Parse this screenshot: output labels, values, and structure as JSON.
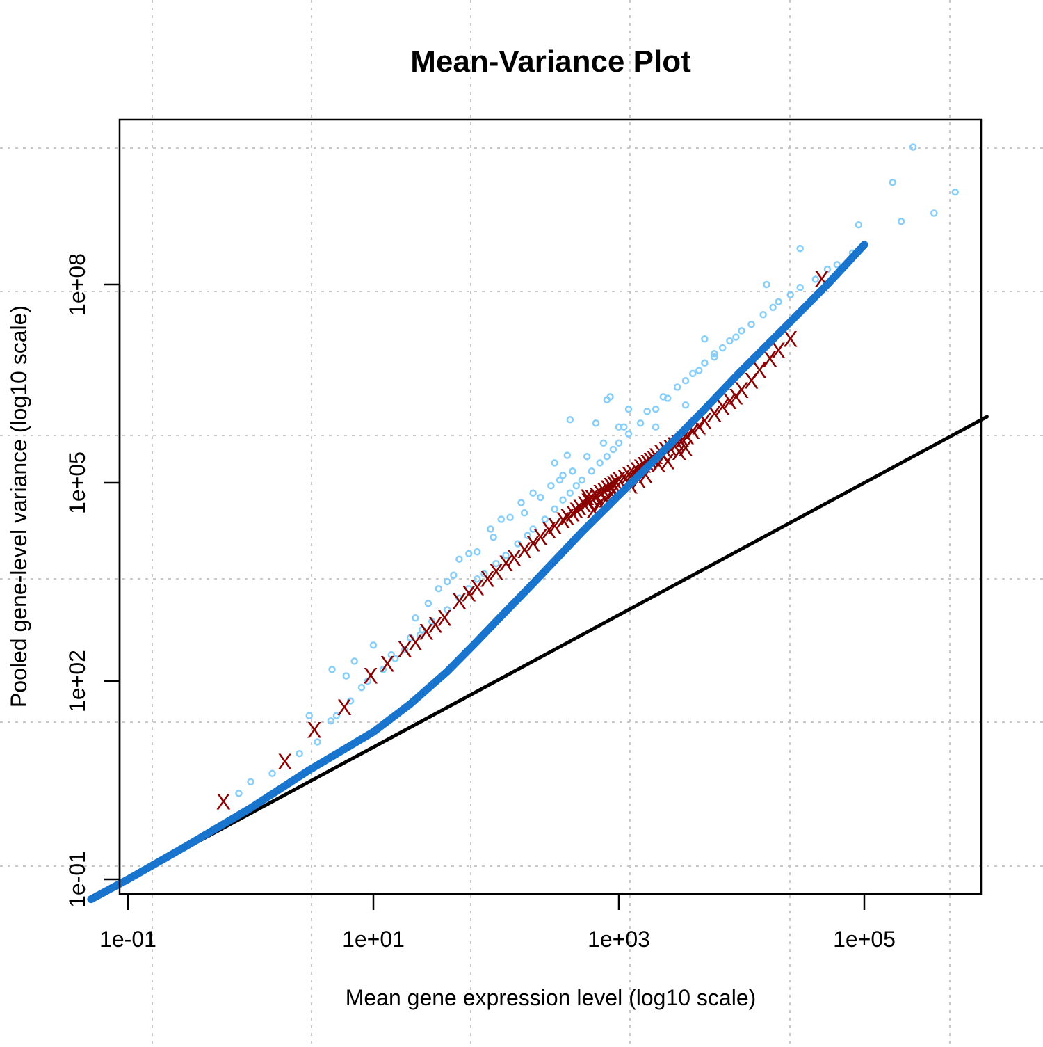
{
  "chart_data": {
    "type": "scatter",
    "title": "Mean-Variance Plot",
    "xlabel": "Mean gene expression level (log10 scale)",
    "ylabel": "Pooled gene-level variance (log10 scale)",
    "x_scale": "log10",
    "y_scale": "log10",
    "xlim": [
      0.08,
      800000
    ],
    "ylim": [
      0.06,
      20000000000
    ],
    "x_ticks": [
      {
        "value": 0.1,
        "label": "1e-01"
      },
      {
        "value": 10,
        "label": "1e+01"
      },
      {
        "value": 1000,
        "label": "1e+03"
      },
      {
        "value": 100000,
        "label": "1e+05"
      }
    ],
    "y_ticks": [
      {
        "value": 0.1,
        "label": "1e-01"
      },
      {
        "value": 100,
        "label": "1e+02"
      },
      {
        "value": 100000,
        "label": "1e+05"
      },
      {
        "value": 100000000,
        "label": "1e+08"
      }
    ],
    "grid": true,
    "grid_style": "dotted",
    "colors": {
      "points": "#87CEFA",
      "markers": "#8B0000",
      "trend_line": "#1874CD",
      "reference_line": "#000000",
      "grid": "#c8c8c8"
    },
    "series": [
      {
        "type": "scatter",
        "marker": "circle",
        "color": "#87CEFA",
        "points": [
          [
            1.5,
            4
          ],
          [
            2.5,
            8
          ],
          [
            3.5,
            12
          ],
          [
            4.5,
            25
          ],
          [
            5.0,
            30
          ],
          [
            6.5,
            50
          ],
          [
            8.0,
            80
          ],
          [
            9.0,
            100
          ],
          [
            12,
            150
          ],
          [
            15,
            220
          ],
          [
            18,
            300
          ],
          [
            20,
            450
          ],
          [
            25,
            600
          ],
          [
            30,
            800
          ],
          [
            40,
            1200
          ],
          [
            50,
            1800
          ],
          [
            60,
            2500
          ],
          [
            70,
            3500
          ],
          [
            80,
            4200
          ],
          [
            100,
            6000
          ],
          [
            120,
            8000
          ],
          [
            150,
            12000
          ],
          [
            180,
            16000
          ],
          [
            200,
            20000
          ],
          [
            250,
            28000
          ],
          [
            300,
            40000
          ],
          [
            350,
            55000
          ],
          [
            400,
            70000
          ],
          [
            450,
            90000
          ],
          [
            500,
            110000
          ],
          [
            600,
            150000
          ],
          [
            700,
            200000
          ],
          [
            800,
            250000
          ],
          [
            900,
            320000
          ],
          [
            1000,
            400000
          ],
          [
            1200,
            550000
          ],
          [
            1500,
            800000
          ],
          [
            2000,
            1300000
          ],
          [
            2500,
            1900000
          ],
          [
            3000,
            2800000
          ],
          [
            4000,
            4500000
          ],
          [
            5000,
            6500000
          ],
          [
            6000,
            9000000
          ],
          [
            8000,
            14000000
          ],
          [
            10000,
            20000000
          ],
          [
            15000,
            35000000
          ],
          [
            20000,
            55000000
          ],
          [
            30000,
            90000000
          ],
          [
            50000,
            170000000
          ],
          [
            80000,
            300000000
          ],
          [
            24,
            500
          ],
          [
            34,
            2500
          ],
          [
            40,
            3200
          ],
          [
            6,
            120
          ],
          [
            4.6,
            150
          ],
          [
            50,
            7000
          ],
          [
            60,
            8500
          ],
          [
            90,
            20000
          ],
          [
            110,
            28000
          ],
          [
            160,
            50000
          ],
          [
            200,
            70000
          ],
          [
            300,
            200000
          ],
          [
            350,
            130000
          ],
          [
            380,
            260000
          ],
          [
            400,
            900000
          ],
          [
            650,
            800000
          ],
          [
            800,
            1800000
          ],
          [
            850,
            2000000
          ],
          [
            1200,
            1300000
          ],
          [
            6000,
            8000000
          ],
          [
            5000,
            15000000
          ],
          [
            16000,
            100000000
          ],
          [
            30000,
            350000000
          ],
          [
            90000,
            800000000
          ],
          [
            170000,
            3500000000
          ],
          [
            370000,
            1200000000
          ],
          [
            250000,
            12000000000
          ],
          [
            550000,
            2500000000
          ],
          [
            200000,
            900000000
          ],
          [
            1000,
            700000
          ],
          [
            2000,
            700000
          ],
          [
            3500,
            1500000
          ],
          [
            1.0,
            3
          ],
          [
            0.8,
            2
          ],
          [
            7,
            200
          ],
          [
            3,
            30
          ],
          [
            10,
            350
          ],
          [
            14,
            250
          ],
          [
            22,
            900
          ],
          [
            28,
            1500
          ],
          [
            45,
            4000
          ],
          [
            70,
            9000
          ],
          [
            95,
            15000
          ],
          [
            130,
            30000
          ],
          [
            170,
            35000
          ],
          [
            230,
            60000
          ],
          [
            280,
            90000
          ],
          [
            330,
            110000
          ],
          [
            420,
            150000
          ],
          [
            550,
            250000
          ],
          [
            750,
            400000
          ],
          [
            1100,
            700000
          ],
          [
            1700,
            1200000
          ],
          [
            2300,
            2000000
          ],
          [
            3500,
            3500000
          ],
          [
            4500,
            5000000
          ],
          [
            7000,
            11000000
          ],
          [
            9000,
            16000000
          ],
          [
            12000,
            25000000
          ],
          [
            18000,
            45000000
          ],
          [
            25000,
            70000000
          ],
          [
            40000,
            120000000
          ],
          [
            60000,
            200000000
          ]
        ]
      },
      {
        "type": "scatter",
        "marker": "X",
        "color": "#8B0000",
        "points": [
          [
            0.6,
            1.5
          ],
          [
            1.9,
            6
          ],
          [
            3.3,
            18
          ],
          [
            5.8,
            40
          ],
          [
            9.5,
            120
          ],
          [
            13,
            180
          ],
          [
            18,
            300
          ],
          [
            22,
            380
          ],
          [
            27,
            550
          ],
          [
            32,
            700
          ],
          [
            38,
            900
          ],
          [
            50,
            1600
          ],
          [
            60,
            2100
          ],
          [
            70,
            2600
          ],
          [
            85,
            3500
          ],
          [
            100,
            4500
          ],
          [
            120,
            6000
          ],
          [
            140,
            7200
          ],
          [
            170,
            9500
          ],
          [
            200,
            12000
          ],
          [
            230,
            15000
          ],
          [
            270,
            19000
          ],
          [
            300,
            22000
          ],
          [
            350,
            27000
          ],
          [
            380,
            30000
          ],
          [
            420,
            34000
          ],
          [
            450,
            38000
          ],
          [
            480,
            42000
          ],
          [
            520,
            47000
          ],
          [
            560,
            52000
          ],
          [
            600,
            58000
          ],
          [
            650,
            64000
          ],
          [
            700,
            70000
          ],
          [
            750,
            76000
          ],
          [
            800,
            82000
          ],
          [
            850,
            90000
          ],
          [
            900,
            95000
          ],
          [
            950,
            100000
          ],
          [
            1000,
            110000
          ],
          [
            1100,
            120000
          ],
          [
            1200,
            130000
          ],
          [
            1300,
            140000
          ],
          [
            1400,
            155000
          ],
          [
            1500,
            170000
          ],
          [
            1600,
            185000
          ],
          [
            1700,
            200000
          ],
          [
            1800,
            215000
          ],
          [
            1900,
            230000
          ],
          [
            2000,
            250000
          ],
          [
            2200,
            280000
          ],
          [
            2400,
            310000
          ],
          [
            2600,
            340000
          ],
          [
            2800,
            370000
          ],
          [
            3000,
            400000
          ],
          [
            3300,
            450000
          ],
          [
            3600,
            500000
          ],
          [
            4000,
            600000
          ],
          [
            4500,
            700000
          ],
          [
            5000,
            850000
          ],
          [
            6000,
            1100000
          ],
          [
            7000,
            1400000
          ],
          [
            8000,
            1700000
          ],
          [
            9000,
            2000000
          ],
          [
            10000,
            2500000
          ],
          [
            12000,
            3500000
          ],
          [
            14000,
            5000000
          ],
          [
            17000,
            7500000
          ],
          [
            20000,
            10000000
          ],
          [
            25000,
            15000000
          ],
          [
            45000,
            120000000
          ],
          [
            550,
            60000
          ],
          [
            700,
            48000
          ],
          [
            900,
            72000
          ],
          [
            1250,
            90000
          ],
          [
            1450,
            110000
          ],
          [
            1650,
            130000
          ],
          [
            2100,
            190000
          ],
          [
            2500,
            210000
          ],
          [
            3100,
            290000
          ],
          [
            3500,
            330000
          ],
          [
            620,
            38000
          ],
          [
            780,
            55000
          ]
        ]
      }
    ],
    "lines": [
      {
        "name": "",
        "color": "#1874CD",
        "width": "thick",
        "points": [
          [
            0.05,
            0.05
          ],
          [
            0.1,
            0.1
          ],
          [
            0.3,
            0.32
          ],
          [
            1,
            1.2
          ],
          [
            3,
            4.5
          ],
          [
            10,
            17
          ],
          [
            20,
            45
          ],
          [
            40,
            140
          ],
          [
            70,
            400
          ],
          [
            100,
            800
          ],
          [
            200,
            3000
          ],
          [
            500,
            18000
          ],
          [
            1000,
            65000
          ],
          [
            2000,
            230000
          ],
          [
            5000,
            1300000
          ],
          [
            10000,
            5000000
          ],
          [
            20000,
            18000000
          ],
          [
            50000,
            100000000
          ],
          [
            100000,
            400000000
          ]
        ]
      },
      {
        "name": "",
        "color": "#000000",
        "width": "normal",
        "points": [
          [
            0.05,
            0.05
          ],
          [
            1000000,
            1000000
          ]
        ]
      }
    ]
  }
}
